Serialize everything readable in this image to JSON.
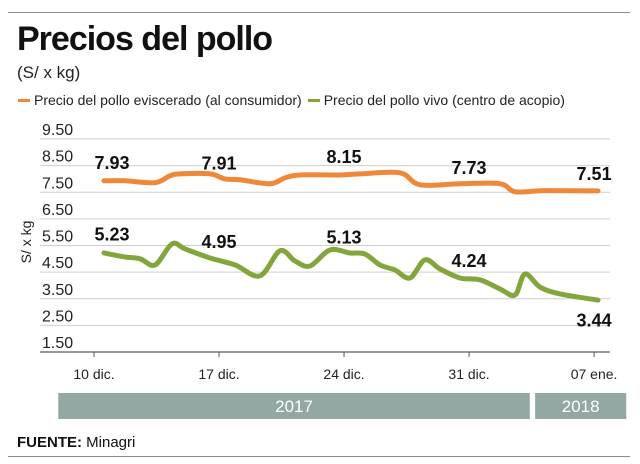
{
  "header": {
    "title": "Precios del pollo",
    "subtitle": "(S/ x kg)"
  },
  "footer": {
    "source_label": "FUENTE:",
    "source_value": "Minagri"
  },
  "colors": {
    "orange": "#f0883a",
    "green": "#82a63b",
    "year_bar": "#93a8a3",
    "grid": "#cfcfcf"
  },
  "chart_data": {
    "type": "line",
    "title": "Precios del pollo",
    "subtitle": "(S/ x kg)",
    "xlabel": "",
    "ylabel": "S/ x kg",
    "ylim": [
      1.5,
      9.5
    ],
    "yticks": [
      "9.50",
      "8.50",
      "7.50",
      "6.50",
      "5.50",
      "4.50",
      "3.50",
      "2.50",
      "1.50"
    ],
    "ytick_values": [
      9.5,
      8.5,
      7.5,
      6.5,
      5.5,
      4.5,
      3.5,
      2.5,
      1.5
    ],
    "grid": true,
    "legend_position": "top",
    "x_unit": "days since 10 dic. 2017",
    "xlim": [
      0,
      29
    ],
    "xticks": [
      {
        "label": "10 dic.",
        "day": 0
      },
      {
        "label": "17 dic.",
        "day": 7
      },
      {
        "label": "24 dic.",
        "day": 14
      },
      {
        "label": "31 dic.",
        "day": 21
      },
      {
        "label": "07 ene.",
        "day": 28
      }
    ],
    "year_bands": [
      {
        "label": "2017",
        "from_day": -2,
        "to_day": 24.4
      },
      {
        "label": "2018",
        "from_day": 24.7,
        "to_day": 29.8
      }
    ],
    "series": [
      {
        "name": "Precio del pollo eviscerado (al consumidor)",
        "color": "#f0883a",
        "x": [
          0.56,
          1.74,
          3.42,
          4.26,
          4.82,
          6.5,
          7.33,
          8.17,
          9.85,
          10.69,
          11.53,
          13.77,
          14.89,
          17.13,
          18.25,
          20.49,
          22.73,
          23.57,
          25.25,
          28.22
        ],
        "values": [
          7.93,
          7.93,
          7.86,
          8.12,
          8.19,
          8.19,
          8.0,
          7.97,
          7.82,
          8.04,
          8.15,
          8.15,
          8.19,
          8.23,
          7.78,
          7.82,
          7.82,
          7.52,
          7.56,
          7.55
        ],
        "annotations": [
          {
            "label": "7.93",
            "day": 0.56,
            "value": 7.93
          },
          {
            "label": "7.91",
            "day": 7.0,
            "value": 7.91
          },
          {
            "label": "8.15",
            "day": 14.0,
            "value": 8.15
          },
          {
            "label": "7.73",
            "day": 21.0,
            "value": 7.73
          },
          {
            "label": "7.51",
            "day": 28.0,
            "value": 7.51
          }
        ]
      },
      {
        "name": "Precio del pollo vivo (centro de acopio)",
        "color": "#82a63b",
        "x": [
          0.56,
          1.74,
          2.58,
          3.42,
          4.37,
          5.1,
          6.5,
          7.9,
          9.29,
          10.41,
          11.25,
          12.09,
          13.21,
          14.33,
          15.17,
          16.01,
          16.85,
          17.69,
          18.53,
          19.37,
          20.49,
          21.61,
          22.73,
          23.57,
          24.13,
          24.97,
          26.09,
          28.22
        ],
        "values": [
          5.22,
          5.07,
          5.0,
          4.77,
          5.56,
          5.37,
          5.03,
          4.77,
          4.36,
          5.3,
          4.92,
          4.73,
          5.33,
          5.22,
          5.18,
          4.77,
          4.58,
          4.28,
          4.96,
          4.62,
          4.28,
          4.21,
          3.87,
          3.64,
          4.43,
          3.94,
          3.68,
          3.45
        ],
        "annotations": [
          {
            "label": "5.23",
            "day": 0.56,
            "value": 5.23
          },
          {
            "label": "4.95",
            "day": 7.0,
            "value": 4.95
          },
          {
            "label": "5.13",
            "day": 14.0,
            "value": 5.13
          },
          {
            "label": "4.24",
            "day": 21.0,
            "value": 4.24
          },
          {
            "label": "3.44",
            "day": 28.0,
            "value": 3.44
          }
        ]
      }
    ]
  }
}
